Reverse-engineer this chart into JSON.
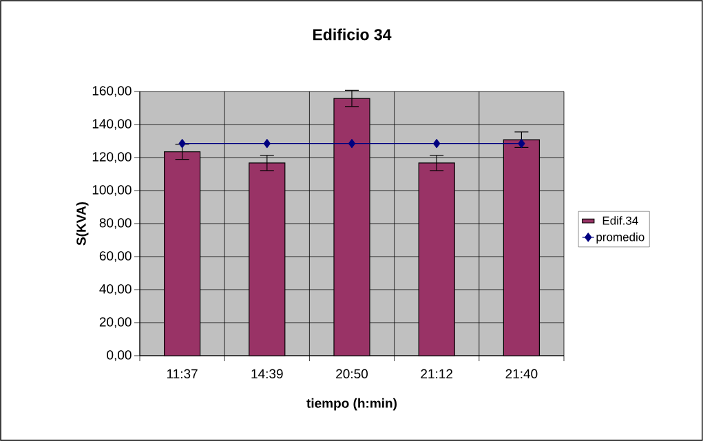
{
  "chart_data": {
    "type": "bar",
    "title": "Edificio 34",
    "xlabel": "tiempo (h:min)",
    "ylabel": "S(KVA)",
    "categories": [
      "11:37",
      "14:39",
      "20:50",
      "21:12",
      "21:40"
    ],
    "series": [
      {
        "name": "Edif.34",
        "type": "bar",
        "color": "#993366",
        "values": [
          123.5,
          116.7,
          155.8,
          116.7,
          130.8
        ],
        "errors": [
          4.6,
          4.6,
          4.9,
          4.6,
          4.7
        ]
      },
      {
        "name": "promedio",
        "type": "line",
        "color": "#000080",
        "marker": "diamond",
        "values": [
          128.5,
          128.5,
          128.5,
          128.5,
          128.5
        ]
      }
    ],
    "ylim": [
      0,
      160
    ],
    "yticks": [
      {
        "value": 0,
        "label": "0,00"
      },
      {
        "value": 20,
        "label": "20,00"
      },
      {
        "value": 40,
        "label": "40,00"
      },
      {
        "value": 60,
        "label": "60,00"
      },
      {
        "value": 80,
        "label": "80,00"
      },
      {
        "value": 100,
        "label": "100,00"
      },
      {
        "value": 120,
        "label": "120,00"
      },
      {
        "value": 140,
        "label": "140,00"
      },
      {
        "value": 160,
        "label": "160,00"
      }
    ],
    "grid": true,
    "legend": "right"
  }
}
